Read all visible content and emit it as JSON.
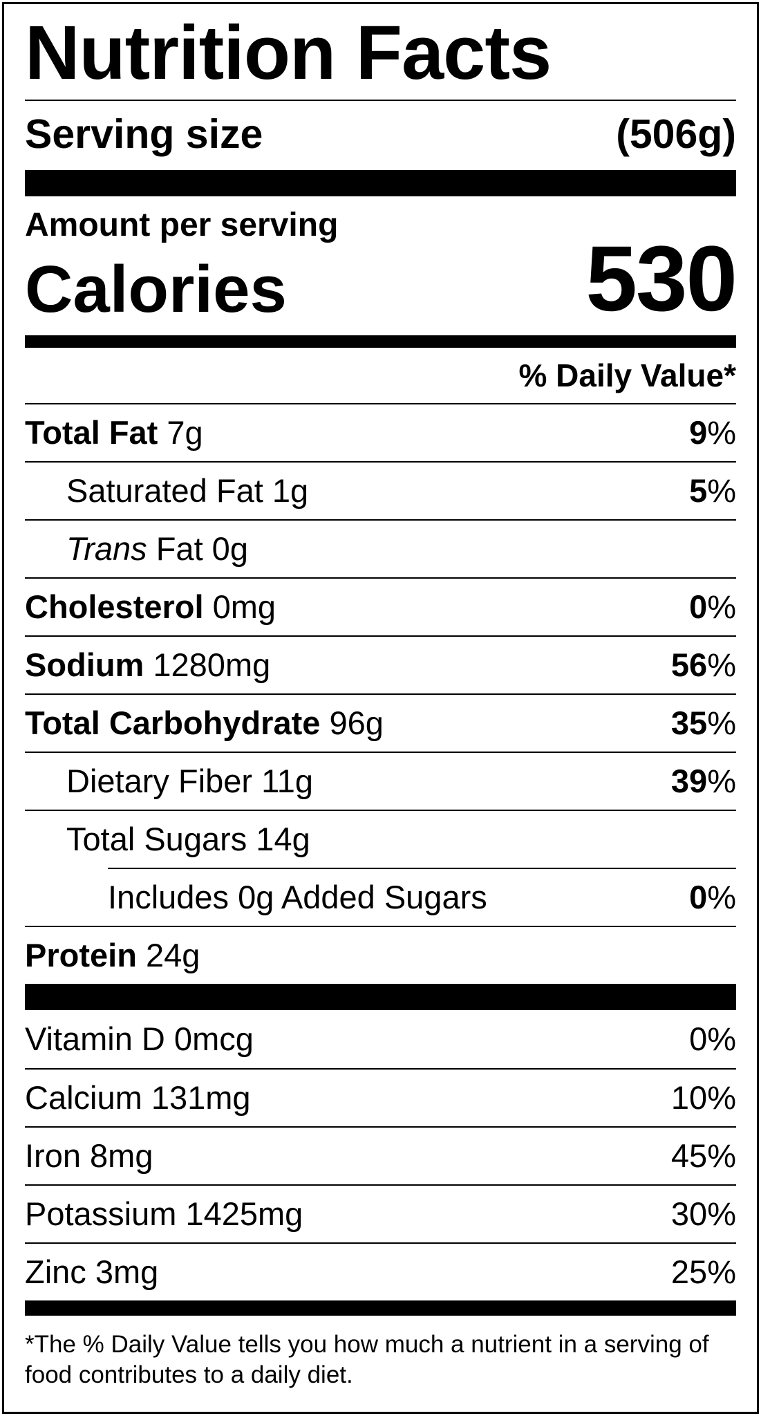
{
  "title": "Nutrition Facts",
  "serving": {
    "label": "Serving size",
    "value": "(506g)"
  },
  "amount_per_serving": "Amount per serving",
  "calories": {
    "label": "Calories",
    "value": "530"
  },
  "daily_value_header": "% Daily Value*",
  "nutrients": [
    {
      "bold": "Total Fat",
      "amount": " 7g",
      "dv_num": "9",
      "dv_pct": "%"
    },
    {
      "name": "Saturated Fat 1g",
      "dv_num": "5",
      "dv_pct": "%"
    },
    {
      "italic": "Trans",
      "amount": " Fat 0g"
    },
    {
      "bold": "Cholesterol",
      "amount": " 0mg",
      "dv_num": "0",
      "dv_pct": "%"
    },
    {
      "bold": "Sodium",
      "amount": " 1280mg",
      "dv_num": "56",
      "dv_pct": "%"
    },
    {
      "bold": "Total Carbohydrate",
      "amount": " 96g",
      "dv_num": "35",
      "dv_pct": "%"
    },
    {
      "name": "Dietary Fiber 11g",
      "dv_num": "39",
      "dv_pct": "%"
    },
    {
      "name": "Total Sugars 14g"
    },
    {
      "name": "Includes 0g Added Sugars",
      "dv_num": "0",
      "dv_pct": "%"
    },
    {
      "bold": "Protein",
      "amount": " 24g"
    }
  ],
  "vitamins": [
    {
      "name": "Vitamin D 0mcg",
      "dv": "0%"
    },
    {
      "name": "Calcium 131mg",
      "dv": "10%"
    },
    {
      "name": "Iron 8mg",
      "dv": "45%"
    },
    {
      "name": "Potassium 1425mg",
      "dv": "30%"
    },
    {
      "name": "Zinc 3mg",
      "dv": "25%"
    }
  ],
  "footnote": "*The % Daily Value tells you how much a nutrient in a serving of food contributes to a daily diet."
}
